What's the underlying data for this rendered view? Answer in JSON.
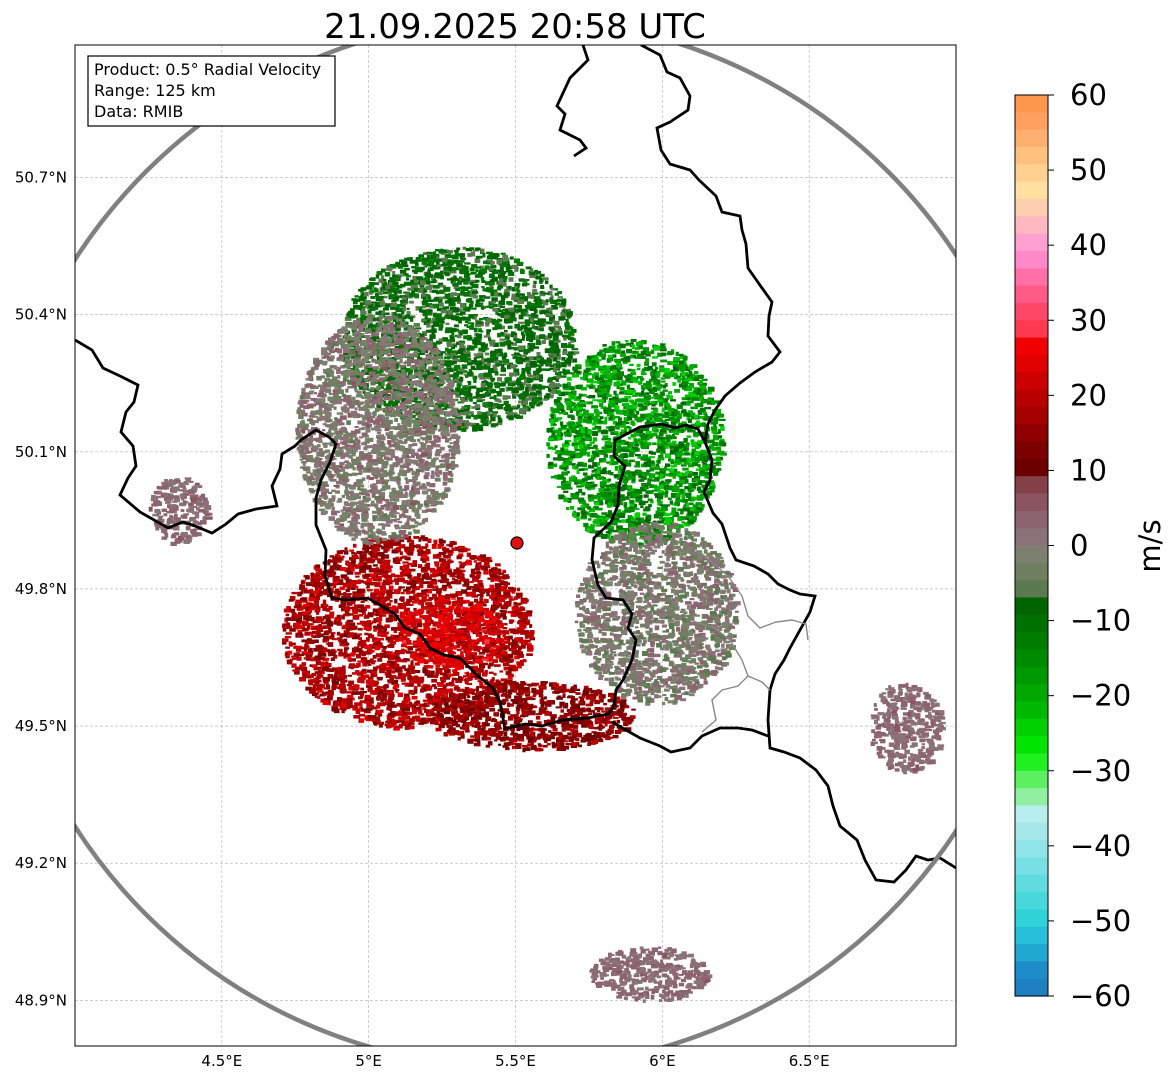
{
  "chart_data": {
    "type": "heatmap",
    "title": "21.09.2025 20:58 UTC",
    "info_box": [
      "Product: 0.5° Radial Velocity",
      "Range: 125 km",
      "Data: RMIB"
    ],
    "x_ticks": [
      {
        "value": 4.5,
        "label": "4.5°E"
      },
      {
        "value": 5.0,
        "label": "5°E"
      },
      {
        "value": 5.5,
        "label": "5.5°E"
      },
      {
        "value": 6.0,
        "label": "6°E"
      },
      {
        "value": 6.5,
        "label": "6.5°E"
      }
    ],
    "y_ticks": [
      {
        "value": 50.7,
        "label": "50.7°N"
      },
      {
        "value": 50.4,
        "label": "50.4°N"
      },
      {
        "value": 50.1,
        "label": "50.1°N"
      },
      {
        "value": 49.8,
        "label": "49.8°N"
      },
      {
        "value": 49.5,
        "label": "49.5°N"
      },
      {
        "value": 49.2,
        "label": "49.2°N"
      },
      {
        "value": 48.9,
        "label": "48.9°N"
      }
    ],
    "xlim": [
      4.0,
      7.0
    ],
    "ylim": [
      48.8,
      50.99
    ],
    "grid": true,
    "radar_site": {
      "lon": 5.505,
      "lat": 49.915
    },
    "range_ring_km": 125,
    "colorbar": {
      "label": "m/s",
      "min": -60,
      "max": 60,
      "ticks": [
        {
          "value": 60,
          "label": "60"
        },
        {
          "value": 50,
          "label": "50"
        },
        {
          "value": 40,
          "label": "40"
        },
        {
          "value": 30,
          "label": "30"
        },
        {
          "value": 20,
          "label": "20"
        },
        {
          "value": 10,
          "label": "10"
        },
        {
          "value": 0,
          "label": "0"
        },
        {
          "value": -10,
          "label": "−10"
        },
        {
          "value": -20,
          "label": "−20"
        },
        {
          "value": -30,
          "label": "−30"
        },
        {
          "value": -40,
          "label": "−40"
        },
        {
          "value": -50,
          "label": "−50"
        },
        {
          "value": -60,
          "label": "−60"
        }
      ],
      "colors_top_to_bottom": [
        "#ff9650",
        "#ffa060",
        "#ffb070",
        "#ffc080",
        "#ffd090",
        "#ffe0a0",
        "#ffd0b0",
        "#ffb8c0",
        "#ffa0d0",
        "#ff88c8",
        "#ff70a8",
        "#ff5a88",
        "#ff4868",
        "#ff3a50",
        "#f00000",
        "#e00000",
        "#cc0000",
        "#b80000",
        "#a40000",
        "#900000",
        "#7c0000",
        "#6c0000",
        "#844048",
        "#8a5560",
        "#8c6470",
        "#8a7278",
        "#7d8070",
        "#6e8060",
        "#5c7a50",
        "#006400",
        "#007000",
        "#007d00",
        "#008a00",
        "#009800",
        "#00a800",
        "#00b800",
        "#00d000",
        "#00e400",
        "#20f020",
        "#5cf060",
        "#90f0a0",
        "#b8eeee",
        "#a6e8ea",
        "#90e4e8",
        "#78e0e4",
        "#60dce0",
        "#48d8dc",
        "#30d4d8",
        "#28c0d8",
        "#20a8d0",
        "#1e8cc8",
        "#1e80c0"
      ]
    },
    "echo_regions": [
      {
        "name": "approach",
        "lon": [
          4.7,
          5.55
        ],
        "lat": [
          49.5,
          49.92
        ],
        "v": [
          12,
          24
        ]
      },
      {
        "name": "core",
        "lon": [
          5.1,
          5.45
        ],
        "lat": [
          49.63,
          49.78
        ],
        "v": [
          20,
          28
        ]
      },
      {
        "name": "north",
        "lon": [
          4.9,
          5.7
        ],
        "lat": [
          50.15,
          50.55
        ],
        "v": [
          -12,
          -5
        ]
      },
      {
        "name": "northeast",
        "lon": [
          5.6,
          6.2
        ],
        "lat": [
          49.9,
          50.35
        ],
        "v": [
          -25,
          -8
        ]
      },
      {
        "name": "grey",
        "lon": [
          4.75,
          5.3
        ],
        "lat": [
          49.9,
          50.4
        ],
        "v": [
          -5,
          5
        ]
      },
      {
        "name": "east",
        "lon": [
          5.7,
          6.25
        ],
        "lat": [
          49.55,
          49.95
        ],
        "v": [
          -6,
          4
        ]
      },
      {
        "name": "south",
        "lon": [
          5.2,
          5.9
        ],
        "lat": [
          49.45,
          49.6
        ],
        "v": [
          10,
          20
        ]
      },
      {
        "name": "west",
        "lon": [
          4.25,
          4.45
        ],
        "lat": [
          49.9,
          50.05
        ],
        "v": [
          0,
          5
        ]
      },
      {
        "name": "southeast-band",
        "lon": [
          6.7,
          6.95
        ],
        "lat": [
          49.4,
          49.6
        ],
        "v": [
          0,
          5
        ]
      },
      {
        "name": "southern-band",
        "lon": [
          5.75,
          6.15
        ],
        "lat": [
          48.9,
          49.02
        ],
        "v": [
          0,
          5
        ]
      }
    ]
  }
}
